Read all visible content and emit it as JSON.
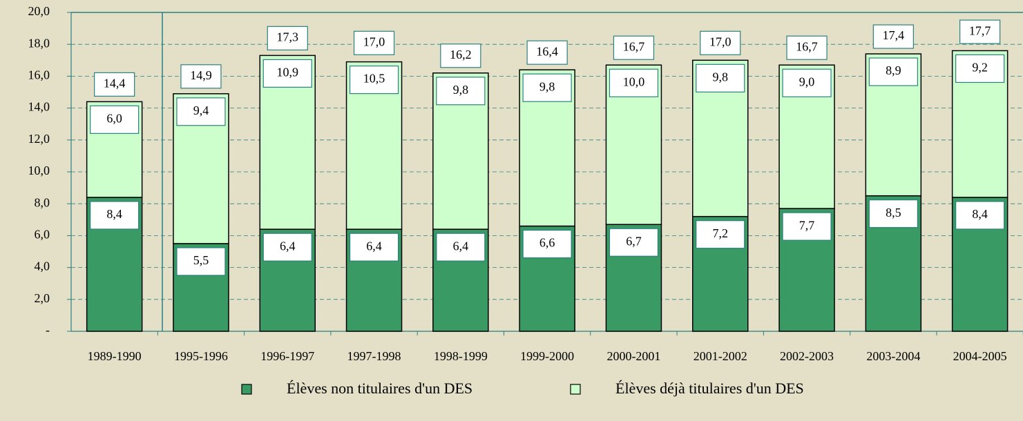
{
  "chart_data": {
    "type": "stacked_bar",
    "categories": [
      "1989-1990",
      "1995-1996",
      "1996-1997",
      "1997-1998",
      "1998-1999",
      "1999-2000",
      "2000-2001",
      "2001-2002",
      "2002-2003",
      "2003-2004",
      "2004-2005"
    ],
    "series": [
      {
        "name": "Élèves non titulaires d'un DES",
        "color": "#3a9a64",
        "values": [
          8.4,
          5.5,
          6.4,
          6.4,
          6.4,
          6.6,
          6.7,
          7.2,
          7.7,
          8.5,
          8.4
        ],
        "value_labels": [
          "8,4",
          "5,5",
          "6,4",
          "6,4",
          "6,4",
          "6,6",
          "6,7",
          "7,2",
          "7,7",
          "8,5",
          "8,4"
        ]
      },
      {
        "name": "Élèves déjà titulaires d'un DES",
        "color": "#ccffcc",
        "values": [
          6.0,
          9.4,
          10.9,
          10.5,
          9.8,
          9.8,
          10.0,
          9.8,
          9.0,
          8.9,
          9.2
        ],
        "value_labels": [
          "6,0",
          "9,4",
          "10,9",
          "10,5",
          "9,8",
          "9,8",
          "10,0",
          "9,8",
          "9,0",
          "8,9",
          "9,2"
        ]
      }
    ],
    "totals": [
      14.4,
      14.9,
      17.3,
      17.0,
      16.2,
      16.4,
      16.7,
      17.0,
      16.7,
      17.4,
      17.7
    ],
    "total_labels": [
      "14,4",
      "14,9",
      "17,3",
      "17,0",
      "16,2",
      "16,4",
      "16,7",
      "17,0",
      "16,7",
      "17,4",
      "17,7"
    ],
    "ylim": [
      0,
      20
    ],
    "yticks": [
      {
        "value": 0,
        "label": "-"
      },
      {
        "value": 2,
        "label": "2,0"
      },
      {
        "value": 4,
        "label": "4,0"
      },
      {
        "value": 6,
        "label": "6,0"
      },
      {
        "value": 8,
        "label": "8,0"
      },
      {
        "value": 10,
        "label": "10,0"
      },
      {
        "value": 12,
        "label": "12,0"
      },
      {
        "value": 14,
        "label": "14,0"
      },
      {
        "value": 16,
        "label": "16,0"
      },
      {
        "value": 18,
        "label": "18,0"
      },
      {
        "value": 20,
        "label": "20,0"
      }
    ],
    "grid": true
  }
}
